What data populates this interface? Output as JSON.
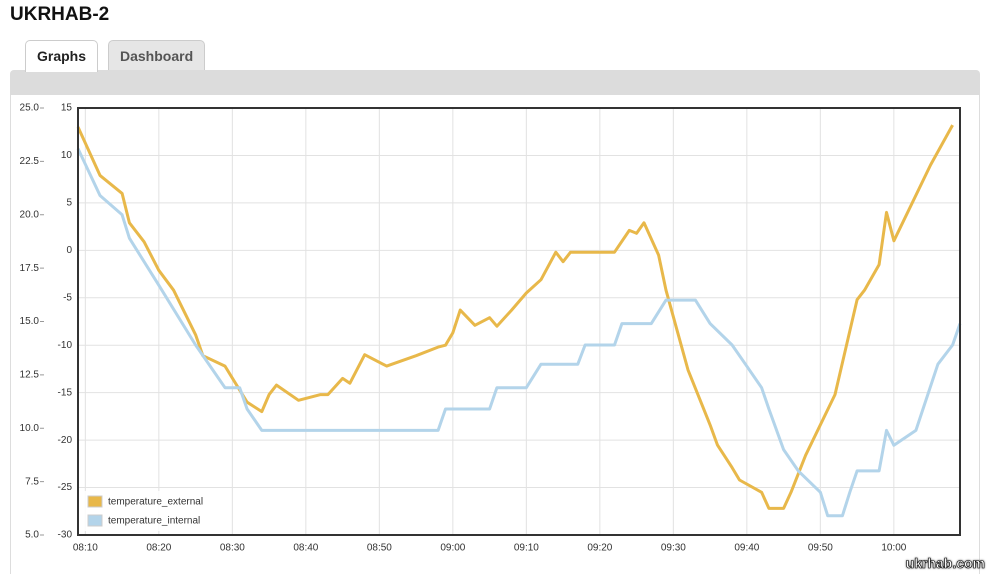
{
  "header": {
    "title": "UKRHAB-2"
  },
  "tabs": [
    "Graphs",
    "Dashboard"
  ],
  "watermark": "ukrhab.com",
  "chart_data": {
    "type": "line",
    "xlim": [
      "08:09",
      "10:09"
    ],
    "xticks": [
      "08:10",
      "08:20",
      "08:30",
      "08:40",
      "08:50",
      "09:00",
      "09:10",
      "09:20",
      "09:30",
      "09:40",
      "09:50",
      "10:00"
    ],
    "ylim": [
      5,
      25
    ],
    "yticks": [
      {
        "value": 5,
        "label": "5.0"
      },
      7.5,
      {
        "value": 10,
        "label": "10.0"
      },
      12.5,
      {
        "value": 15,
        "label": "15.0"
      },
      17.5,
      {
        "value": 20,
        "label": "20.0"
      },
      22.5,
      {
        "value": 25,
        "label": "25.0"
      }
    ],
    "y2lim": [
      -30,
      15
    ],
    "y2ticks": [
      -30,
      -25,
      -20,
      -15,
      -10,
      -5,
      0,
      5,
      10,
      15
    ],
    "grid": true,
    "legend": "bottom-left",
    "series": [
      {
        "name": "temperature_external",
        "color": "#e8b84a",
        "axis": "y2",
        "x": [
          "08:09",
          "08:12",
          "08:15",
          "08:16",
          "08:18",
          "08:20",
          "08:22",
          "08:25",
          "08:26",
          "08:29",
          "08:32",
          "08:34",
          "08:35",
          "08:36",
          "08:39",
          "08:42",
          "08:43",
          "08:45",
          "08:46",
          "08:48",
          "08:51",
          "08:55",
          "08:58",
          "08:59",
          "09:00",
          "09:01",
          "09:03",
          "09:05",
          "09:06",
          "09:08",
          "09:10",
          "09:12",
          "09:14",
          "09:15",
          "09:16",
          "09:22",
          "09:24",
          "09:25",
          "09:26",
          "09:28",
          "09:29",
          "09:32",
          "09:35",
          "09:36",
          "09:38",
          "09:39",
          "09:42",
          "09:43",
          "09:45",
          "09:46",
          "09:48",
          "09:52",
          "09:55",
          "09:56",
          "09:58",
          "09:59",
          "10:00",
          "10:05",
          "10:08"
        ],
        "values": [
          13.0,
          7.9,
          6.0,
          2.9,
          0.9,
          -2.1,
          -4.2,
          -8.9,
          -11.1,
          -12.2,
          -16.0,
          -17.0,
          -15.2,
          -14.2,
          -15.8,
          -15.2,
          -15.2,
          -13.5,
          -14.0,
          -11.0,
          -12.2,
          -11.1,
          -10.2,
          -10.0,
          -8.7,
          -6.3,
          -7.9,
          -7.1,
          -8.0,
          -6.3,
          -4.5,
          -3.1,
          -0.2,
          -1.2,
          -0.2,
          -0.2,
          2.1,
          1.8,
          2.9,
          -0.5,
          -4.2,
          -12.6,
          -18.4,
          -20.5,
          -22.9,
          -24.2,
          -25.5,
          -27.2,
          -27.2,
          -25.5,
          -21.6,
          -15.2,
          -5.2,
          -4.2,
          -1.5,
          4.0,
          1.0,
          9.0,
          13.2
        ]
      },
      {
        "name": "temperature_internal",
        "color": "#b3d4ea",
        "x": [
          "08:09",
          "08:12",
          "08:15",
          "08:16",
          "08:20",
          "08:25",
          "08:29",
          "08:31",
          "08:32",
          "08:34",
          "08:58",
          "08:59",
          "09:05",
          "09:06",
          "09:10",
          "09:12",
          "09:17",
          "09:18",
          "09:22",
          "09:23",
          "09:27",
          "09:29",
          "09:33",
          "09:35",
          "09:38",
          "09:40",
          "09:42",
          "09:43",
          "09:45",
          "09:47",
          "09:50",
          "09:51",
          "09:53",
          "09:54",
          "09:55",
          "09:58",
          "09:59",
          "10:00",
          "10:03",
          "10:06",
          "10:08",
          "10:09"
        ],
        "values": [
          23.1,
          20.9,
          20.0,
          18.9,
          16.7,
          13.9,
          11.9,
          11.9,
          10.9,
          9.9,
          9.9,
          10.9,
          10.9,
          11.9,
          11.9,
          13.0,
          13.0,
          13.9,
          13.9,
          14.9,
          14.9,
          16.0,
          16.0,
          14.9,
          13.9,
          12.9,
          11.9,
          10.9,
          9.0,
          8.0,
          7.0,
          5.9,
          5.9,
          7.0,
          8.0,
          8.0,
          9.9,
          9.2,
          9.9,
          13.0,
          13.9,
          14.9
        ]
      }
    ]
  }
}
